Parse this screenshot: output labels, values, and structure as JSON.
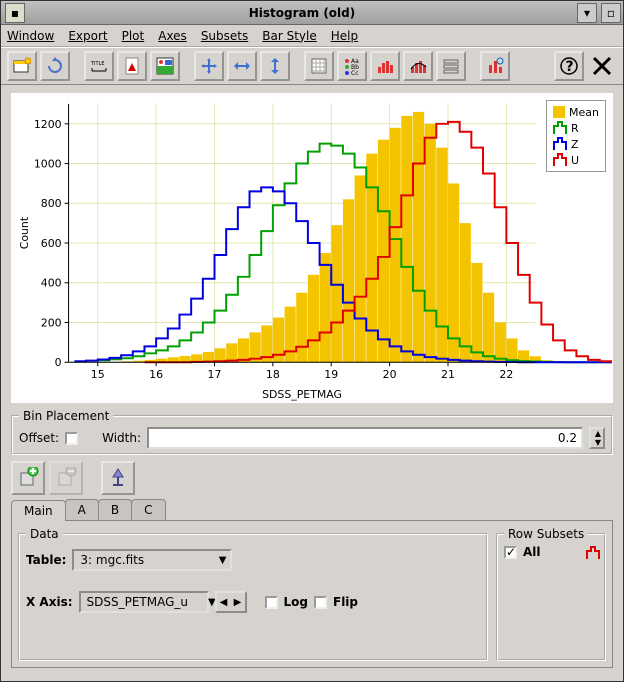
{
  "window": {
    "title": "Histogram (old)"
  },
  "menu": {
    "items": [
      "Window",
      "Export",
      "Plot",
      "Axes",
      "Subsets",
      "Bar Style",
      "Help"
    ]
  },
  "toolbar_icons": [
    "new",
    "reload",
    "range",
    "pdf",
    "image",
    "pan",
    "h-resize",
    "v-resize",
    "grid",
    "annot",
    "bars1",
    "bars2",
    "list",
    "bars3",
    "help",
    "close"
  ],
  "chart": {
    "type": "histogram",
    "xlabel": "SDSS_PETMAG",
    "ylabel": "Count",
    "xlim": [
      14.5,
      22.5
    ],
    "ylim": [
      0,
      1300
    ],
    "xticks": [
      15,
      16,
      17,
      18,
      19,
      20,
      21,
      22
    ],
    "yticks": [
      0,
      200,
      400,
      600,
      800,
      1000,
      1200
    ],
    "grid_color": "#e5e5b0",
    "background": "#ffffff",
    "bin_width": 0.2,
    "series": [
      {
        "name": "Mean",
        "type": "filled-bar",
        "color": "#f5c400",
        "x0": 15.0,
        "y": [
          0,
          0,
          5,
          8,
          12,
          18,
          25,
          32,
          40,
          52,
          70,
          95,
          120,
          150,
          185,
          225,
          280,
          350,
          440,
          550,
          690,
          820,
          940,
          1050,
          1120,
          1180,
          1240,
          1260,
          1200,
          1080,
          900,
          700,
          500,
          350,
          200,
          120,
          60,
          30,
          10,
          5,
          0,
          0,
          0,
          0,
          0,
          0,
          0,
          0,
          0,
          0,
          0,
          0,
          0,
          0,
          0,
          0,
          0,
          0,
          0,
          0
        ]
      },
      {
        "name": "R",
        "type": "step",
        "color": "#00a000",
        "x0": 15.0,
        "y": [
          10,
          15,
          20,
          30,
          45,
          60,
          80,
          110,
          150,
          200,
          260,
          340,
          430,
          540,
          660,
          790,
          900,
          1000,
          1060,
          1100,
          1090,
          1050,
          980,
          880,
          760,
          620,
          480,
          360,
          260,
          180,
          120,
          80,
          50,
          30,
          18,
          10,
          6,
          4,
          2,
          1,
          0,
          0,
          0,
          0,
          0,
          0,
          0,
          0,
          0,
          0,
          0,
          0,
          0,
          0,
          0,
          0,
          0,
          0,
          0,
          0
        ]
      },
      {
        "name": "Z",
        "type": "step",
        "color": "#0000e0",
        "x0": 14.6,
        "y": [
          5,
          8,
          14,
          22,
          35,
          55,
          80,
          120,
          170,
          240,
          320,
          420,
          540,
          670,
          780,
          860,
          880,
          860,
          800,
          710,
          600,
          490,
          390,
          300,
          220,
          160,
          115,
          80,
          55,
          38,
          26,
          18,
          12,
          8,
          5,
          3,
          2,
          1,
          0,
          0,
          0,
          0,
          0,
          0,
          0,
          0,
          0,
          0,
          0,
          0,
          0,
          0,
          0,
          0,
          0,
          0,
          0,
          0,
          0,
          0
        ]
      },
      {
        "name": "U",
        "type": "step",
        "color": "#e00000",
        "x0": 15.8,
        "y": [
          0,
          0,
          0,
          0,
          2,
          3,
          5,
          8,
          12,
          18,
          26,
          38,
          55,
          78,
          110,
          150,
          200,
          260,
          330,
          420,
          530,
          680,
          840,
          1000,
          1130,
          1200,
          1210,
          1160,
          1080,
          950,
          780,
          600,
          440,
          300,
          190,
          110,
          60,
          30,
          12,
          5,
          2,
          0,
          0,
          0,
          0,
          0,
          0,
          0,
          0,
          0,
          0,
          0,
          0,
          0,
          0,
          0,
          0,
          0,
          0,
          0
        ]
      }
    ],
    "legend": {
      "position": "top-right",
      "items": [
        {
          "label": "Mean",
          "color": "#f5c400",
          "swatch": "fill"
        },
        {
          "label": "R",
          "color": "#00a000",
          "swatch": "outline"
        },
        {
          "label": "Z",
          "color": "#0000e0",
          "swatch": "outline"
        },
        {
          "label": "U",
          "color": "#e00000",
          "swatch": "outline"
        }
      ]
    }
  },
  "bin_placement": {
    "legend": "Bin Placement",
    "offset_label": "Offset:",
    "width_label": "Width:",
    "width_value": "0.2"
  },
  "action_buttons": [
    "add-subset",
    "remove-subset",
    "rescale"
  ],
  "tabs": {
    "items": [
      "Main",
      "A",
      "B",
      "C"
    ],
    "active": 0
  },
  "data_panel": {
    "legend": "Data",
    "table_label": "Table:",
    "table_value": "3: mgc.fits",
    "xaxis_label": "X Axis:",
    "xaxis_value": "SDSS_PETMAG_u",
    "log_label": "Log",
    "flip_label": "Flip"
  },
  "row_subsets": {
    "legend": "Row Subsets",
    "all_label": "All",
    "all_checked": true,
    "swatch_color": "#e00000"
  }
}
